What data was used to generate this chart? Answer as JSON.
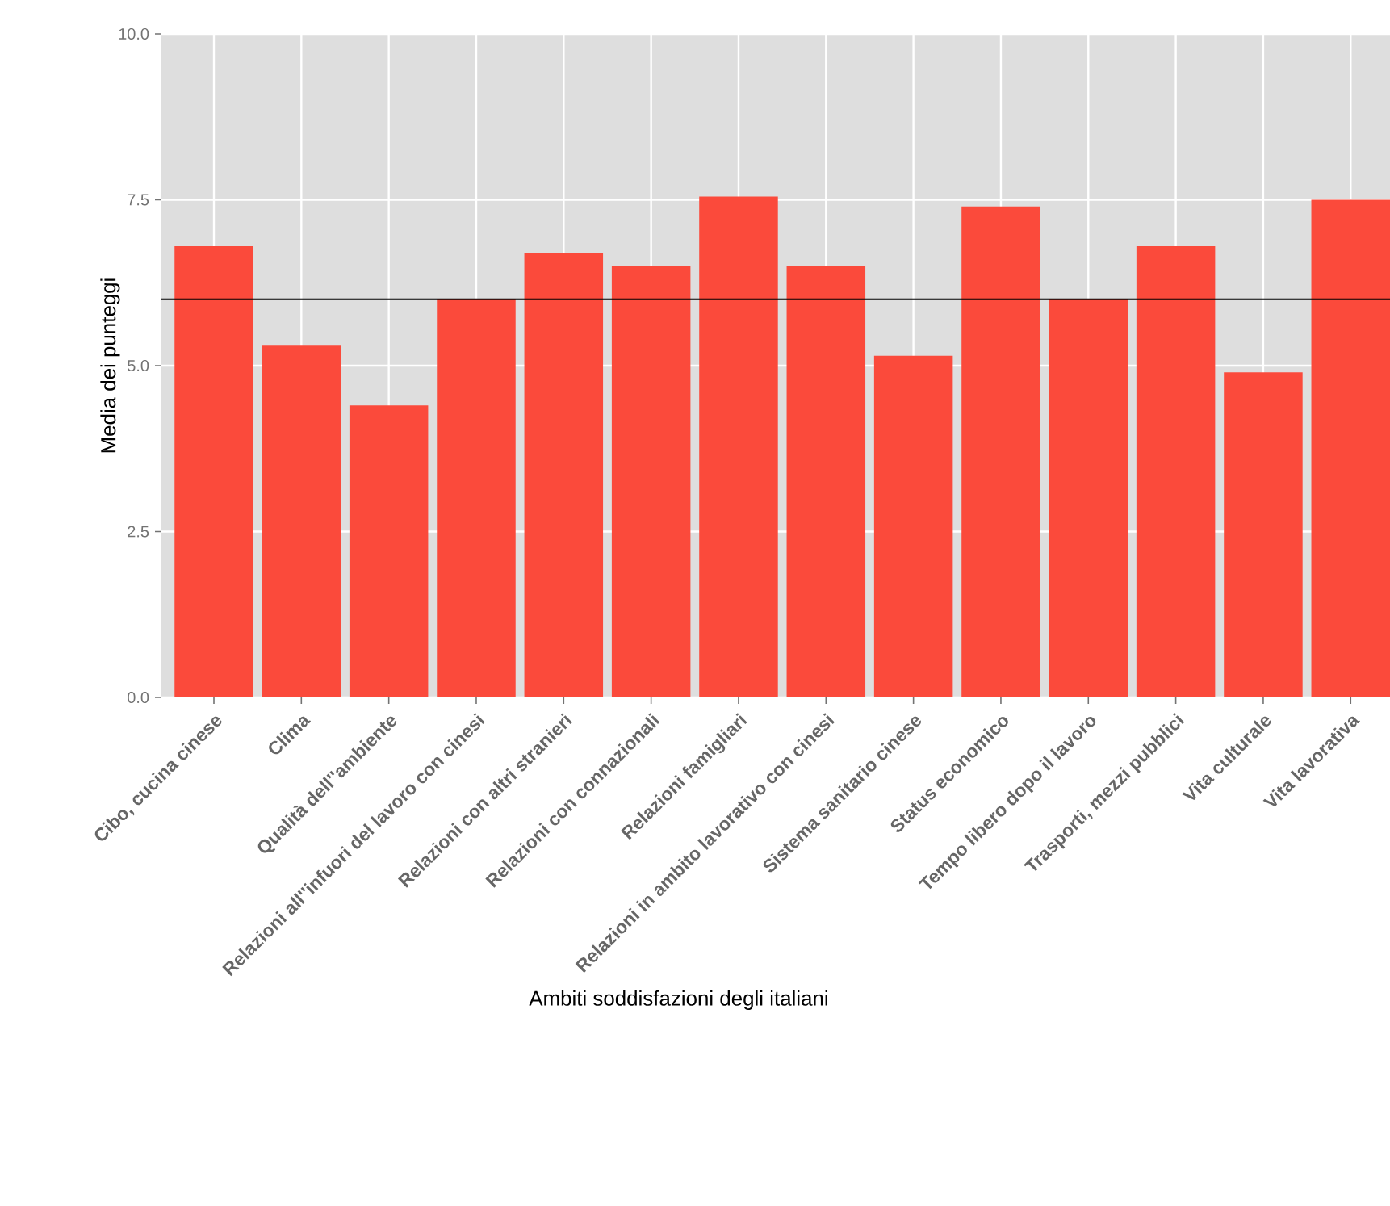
{
  "chart_data": {
    "type": "bar",
    "xlabel": "Ambiti soddisfazioni degli italiani",
    "ylabel": "Media dei punteggi",
    "categories": [
      "Cibo, cucina cinese",
      "Clima",
      "Qualità dell''ambiente",
      "Relazioni all''infuori del lavoro con cinesi",
      "Relazioni con altri stranieri",
      "Relazioni con connazionali",
      "Relazioni famigliari",
      "Relazioni in ambito lavorativo con cinesi",
      "Sistema sanitario cinese",
      "Status economico",
      "Tempo libero dopo il lavoro",
      "Trasporti, mezzi pubblici",
      "Vita culturale",
      "Vita lavorativa"
    ],
    "values": [
      6.8,
      5.3,
      4.4,
      6.0,
      6.7,
      6.5,
      7.55,
      6.5,
      5.15,
      7.4,
      6.0,
      6.8,
      4.9,
      7.5
    ],
    "color": "#fb4a3b",
    "ylim": [
      0,
      10
    ],
    "yticks": [
      {
        "value": 0,
        "label": "0.0"
      },
      {
        "value": 2.5,
        "label": "2.5"
      },
      {
        "value": 5,
        "label": "5.0"
      },
      {
        "value": 7.5,
        "label": "7.5"
      },
      {
        "value": 10,
        "label": "10.0"
      }
    ],
    "grid": true,
    "ref_lines": [
      {
        "axis": "y",
        "value": 6,
        "color": "#000000"
      }
    ]
  }
}
